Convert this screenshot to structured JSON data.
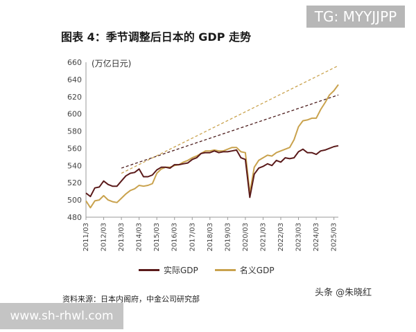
{
  "watermark_top": "TG: MYYJJPP",
  "watermark_bottom": "www.sh-rhwl.com",
  "title": "图表 4：季节调整后日本的 GDP 走势",
  "source": "资料来源：日本内阁府，中金公司研究部",
  "credit": "头条 @朱晓红",
  "chart_data": {
    "type": "line",
    "ylabel": "(万亿日元)",
    "ylim": [
      480,
      660
    ],
    "y_ticks": [
      480,
      500,
      520,
      540,
      560,
      580,
      600,
      620,
      640,
      660
    ],
    "x_ticks": [
      "2011/03",
      "2012/03",
      "2013/03",
      "2014/03",
      "2015/03",
      "2016/03",
      "2017/03",
      "2018/03",
      "2019/03",
      "2020/03",
      "2021/03",
      "2022/03",
      "2023/03",
      "2024/03",
      "2025/03"
    ],
    "x_start": 2011.0,
    "x_end": 2025.25,
    "grid": false,
    "legend_position": "bottom",
    "series": [
      {
        "name": "实际GDP",
        "color": "#5a1a1a",
        "points": [
          [
            2011.0,
            508
          ],
          [
            2011.25,
            504
          ],
          [
            2011.5,
            514
          ],
          [
            2011.75,
            515
          ],
          [
            2012.0,
            522
          ],
          [
            2012.25,
            518
          ],
          [
            2012.5,
            516
          ],
          [
            2012.75,
            516
          ],
          [
            2013.0,
            522
          ],
          [
            2013.25,
            528
          ],
          [
            2013.5,
            531
          ],
          [
            2013.75,
            532
          ],
          [
            2014.0,
            536
          ],
          [
            2014.25,
            527
          ],
          [
            2014.5,
            527
          ],
          [
            2014.75,
            529
          ],
          [
            2015.0,
            535
          ],
          [
            2015.25,
            538
          ],
          [
            2015.5,
            538
          ],
          [
            2015.75,
            537
          ],
          [
            2016.0,
            541
          ],
          [
            2016.25,
            541
          ],
          [
            2016.5,
            542
          ],
          [
            2016.75,
            543
          ],
          [
            2017.0,
            547
          ],
          [
            2017.25,
            549
          ],
          [
            2017.5,
            554
          ],
          [
            2017.75,
            555
          ],
          [
            2018.0,
            555
          ],
          [
            2018.25,
            557
          ],
          [
            2018.5,
            555
          ],
          [
            2018.75,
            556
          ],
          [
            2019.0,
            556
          ],
          [
            2019.25,
            557
          ],
          [
            2019.5,
            558
          ],
          [
            2019.75,
            549
          ],
          [
            2020.0,
            547
          ],
          [
            2020.25,
            503
          ],
          [
            2020.5,
            530
          ],
          [
            2020.75,
            537
          ],
          [
            2021.0,
            539
          ],
          [
            2021.25,
            542
          ],
          [
            2021.5,
            540
          ],
          [
            2021.75,
            546
          ],
          [
            2022.0,
            544
          ],
          [
            2022.25,
            549
          ],
          [
            2022.5,
            548
          ],
          [
            2022.75,
            549
          ],
          [
            2023.0,
            556
          ],
          [
            2023.25,
            559
          ],
          [
            2023.5,
            555
          ],
          [
            2023.75,
            555
          ],
          [
            2024.0,
            553
          ],
          [
            2024.25,
            557
          ],
          [
            2024.5,
            558
          ],
          [
            2024.75,
            560
          ],
          [
            2025.0,
            562
          ],
          [
            2025.25,
            563
          ]
        ]
      },
      {
        "name": "名义GDP",
        "color": "#c9a24d",
        "points": [
          [
            2011.0,
            499
          ],
          [
            2011.25,
            491
          ],
          [
            2011.5,
            499
          ],
          [
            2011.75,
            500
          ],
          [
            2012.0,
            505
          ],
          [
            2012.25,
            500
          ],
          [
            2012.5,
            498
          ],
          [
            2012.75,
            497
          ],
          [
            2013.0,
            502
          ],
          [
            2013.25,
            507
          ],
          [
            2013.5,
            511
          ],
          [
            2013.75,
            513
          ],
          [
            2014.0,
            517
          ],
          [
            2014.25,
            516
          ],
          [
            2014.5,
            517
          ],
          [
            2014.75,
            519
          ],
          [
            2015.0,
            531
          ],
          [
            2015.25,
            536
          ],
          [
            2015.5,
            538
          ],
          [
            2015.75,
            538
          ],
          [
            2016.0,
            540
          ],
          [
            2016.25,
            541
          ],
          [
            2016.5,
            544
          ],
          [
            2016.75,
            546
          ],
          [
            2017.0,
            549
          ],
          [
            2017.25,
            551
          ],
          [
            2017.5,
            554
          ],
          [
            2017.75,
            557
          ],
          [
            2018.0,
            557
          ],
          [
            2018.25,
            558
          ],
          [
            2018.5,
            557
          ],
          [
            2018.75,
            557
          ],
          [
            2019.0,
            559
          ],
          [
            2019.25,
            561
          ],
          [
            2019.5,
            561
          ],
          [
            2019.75,
            556
          ],
          [
            2020.0,
            555
          ],
          [
            2020.25,
            508
          ],
          [
            2020.5,
            538
          ],
          [
            2020.75,
            546
          ],
          [
            2021.0,
            549
          ],
          [
            2021.25,
            552
          ],
          [
            2021.5,
            551
          ],
          [
            2021.75,
            555
          ],
          [
            2022.0,
            557
          ],
          [
            2022.25,
            559
          ],
          [
            2022.5,
            561
          ],
          [
            2022.75,
            570
          ],
          [
            2023.0,
            585
          ],
          [
            2023.25,
            592
          ],
          [
            2023.5,
            593
          ],
          [
            2023.75,
            595
          ],
          [
            2024.0,
            595
          ],
          [
            2024.25,
            605
          ],
          [
            2024.5,
            613
          ],
          [
            2024.75,
            622
          ],
          [
            2025.0,
            627
          ],
          [
            2025.25,
            634
          ]
        ]
      }
    ],
    "trend_lines": [
      {
        "color": "#4a1a1a",
        "from": [
          2013.0,
          537
        ],
        "to": [
          2025.25,
          622
        ]
      },
      {
        "color": "#c9a24d",
        "from": [
          2013.0,
          531
        ],
        "to": [
          2025.25,
          656
        ]
      }
    ]
  }
}
